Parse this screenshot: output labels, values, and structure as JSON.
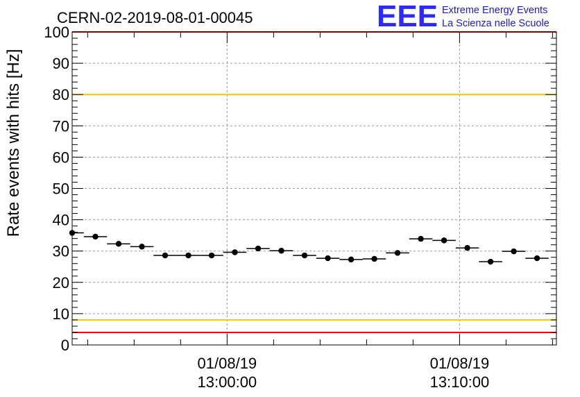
{
  "header": {
    "title": "CERN-02-2019-08-01-00045",
    "logo_letters": "EEE",
    "logo_line1": "Extreme Energy Events",
    "logo_line2": "La Scienza nelle Scuole"
  },
  "chart_data": {
    "type": "scatter",
    "title": "CERN-02-2019-08-01-00045",
    "xlabel": "",
    "ylabel": "Rate events with hits [Hz]",
    "ylim": [
      0,
      100
    ],
    "yticks": [
      0,
      10,
      20,
      30,
      40,
      50,
      60,
      70,
      80,
      90,
      100
    ],
    "xlim": [
      "2019-08-01 12:53:20",
      "2019-08-01 13:14:10"
    ],
    "xticks": [
      {
        "time": "2019-08-01 13:00:00",
        "label_date": "01/08/19",
        "label_time": "13:00:00"
      },
      {
        "time": "2019-08-01 13:10:00",
        "label_date": "01/08/19",
        "label_time": "13:10:00"
      }
    ],
    "bin_width_s": 60,
    "grid": true,
    "series": [
      {
        "x": [
          "2019-08-01 12:53:20",
          "2019-08-01 12:54:20",
          "2019-08-01 12:55:20",
          "2019-08-01 12:56:20",
          "2019-08-01 12:57:20",
          "2019-08-01 12:58:20",
          "2019-08-01 12:59:20",
          "2019-08-01 13:00:20",
          "2019-08-01 13:01:20",
          "2019-08-01 13:02:20",
          "2019-08-01 13:03:20",
          "2019-08-01 13:04:20",
          "2019-08-01 13:05:20",
          "2019-08-01 13:06:20",
          "2019-08-01 13:07:20",
          "2019-08-01 13:08:20",
          "2019-08-01 13:09:20",
          "2019-08-01 13:10:20",
          "2019-08-01 13:11:20",
          "2019-08-01 13:12:20",
          "2019-08-01 13:13:20"
        ],
        "values": [
          35.8,
          34.6,
          32.3,
          31.4,
          28.6,
          28.6,
          28.6,
          29.6,
          30.8,
          30.1,
          28.6,
          27.7,
          27.3,
          27.5,
          29.4,
          33.9,
          33.4,
          31.0,
          26.6,
          29.9,
          27.7
        ]
      }
    ],
    "reference_lines": [
      {
        "y": 80,
        "color": "#f0c800"
      },
      {
        "y": 8,
        "color": "#f0c800"
      },
      {
        "y": 100,
        "color": "#ff0000"
      },
      {
        "y": 4,
        "color": "#ff0000"
      }
    ]
  }
}
